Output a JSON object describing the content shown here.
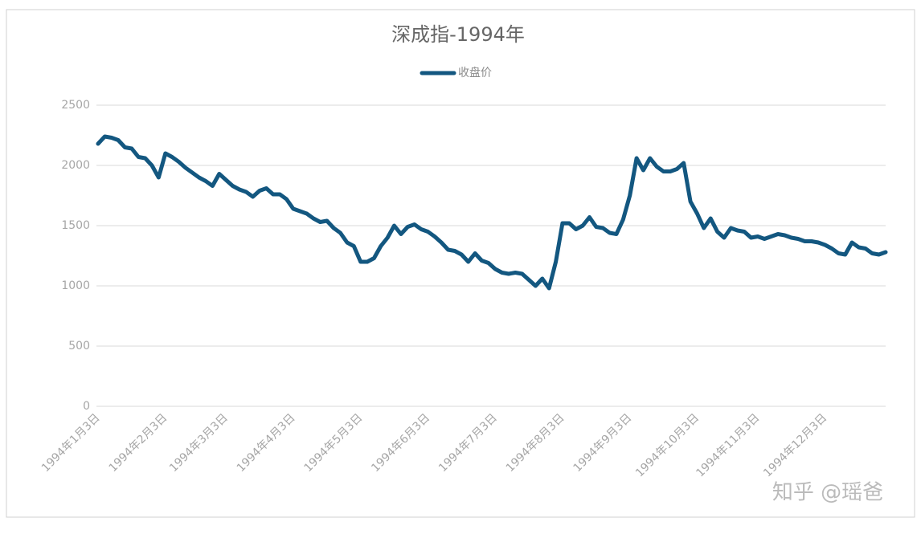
{
  "chart_data": {
    "type": "line",
    "title": "深成指-1994年",
    "categories": [
      "1994年1月3日",
      null,
      null,
      null,
      null,
      null,
      null,
      null,
      null,
      null,
      "1994年2月3日",
      null,
      null,
      null,
      null,
      null,
      null,
      null,
      null,
      "1994年3月3日",
      null,
      null,
      null,
      null,
      null,
      null,
      null,
      null,
      null,
      "1994年4月3日",
      null,
      null,
      null,
      null,
      null,
      null,
      null,
      null,
      null,
      "1994年5月3日",
      null,
      null,
      null,
      null,
      null,
      null,
      null,
      null,
      null,
      "1994年6月3日",
      null,
      null,
      null,
      null,
      null,
      null,
      null,
      null,
      null,
      "1994年7月3日",
      null,
      null,
      null,
      null,
      null,
      null,
      null,
      null,
      null,
      "1994年8月3日",
      null,
      null,
      null,
      null,
      null,
      null,
      null,
      null,
      null,
      "1994年9月3日",
      null,
      null,
      null,
      null,
      null,
      null,
      null,
      null,
      null,
      "1994年10月3日",
      null,
      null,
      null,
      null,
      null,
      null,
      null,
      null,
      "1994年11月3日",
      null,
      null,
      null,
      null,
      null,
      null,
      null,
      null,
      null,
      "1994年12月3日",
      null,
      null,
      null,
      null,
      null,
      null,
      null,
      null,
      null
    ],
    "series": [
      {
        "name": "收盘价",
        "color": "#135780",
        "values": [
          2180,
          2240,
          2230,
          2210,
          2150,
          2140,
          2070,
          2060,
          2000,
          1900,
          2100,
          2070,
          2030,
          1980,
          1940,
          1900,
          1870,
          1830,
          1930,
          1880,
          1830,
          1800,
          1780,
          1740,
          1790,
          1810,
          1760,
          1760,
          1720,
          1640,
          1620,
          1600,
          1560,
          1530,
          1540,
          1480,
          1440,
          1360,
          1330,
          1200,
          1200,
          1230,
          1330,
          1400,
          1500,
          1430,
          1490,
          1510,
          1470,
          1450,
          1410,
          1360,
          1300,
          1290,
          1260,
          1200,
          1270,
          1210,
          1190,
          1140,
          1110,
          1100,
          1110,
          1100,
          1050,
          1000,
          1060,
          980,
          1200,
          1520,
          1520,
          1470,
          1500,
          1570,
          1490,
          1480,
          1440,
          1430,
          1550,
          1750,
          2060,
          1960,
          2060,
          1990,
          1950,
          1950,
          1970,
          2020,
          1700,
          1600,
          1480,
          1560,
          1450,
          1400,
          1480,
          1460,
          1450,
          1400,
          1410,
          1390,
          1410,
          1430,
          1420,
          1400,
          1390,
          1370,
          1370,
          1360,
          1340,
          1310,
          1270,
          1260,
          1360,
          1320,
          1310,
          1270,
          1260,
          1280
        ]
      }
    ],
    "ylim": [
      0,
      2500
    ],
    "yticks": [
      0,
      500,
      1000,
      1500,
      2000,
      2500
    ],
    "grid": true,
    "legend": "top",
    "watermark": "知乎 @瑶爸"
  }
}
